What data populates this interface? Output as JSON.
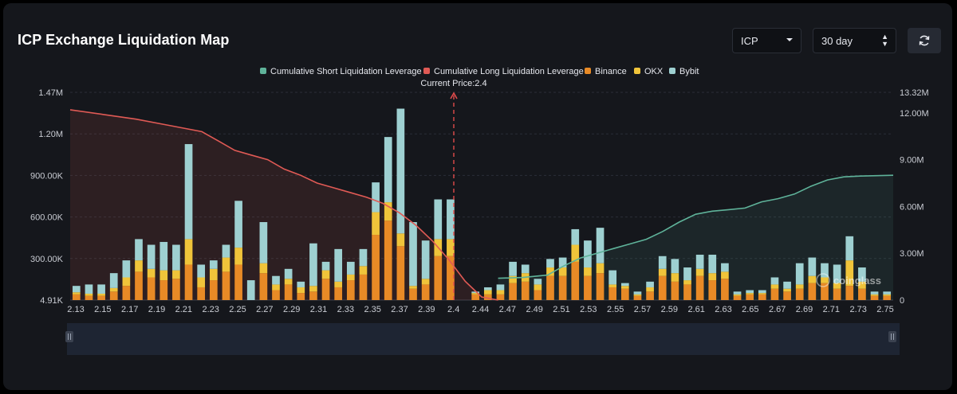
{
  "header": {
    "title": "ICP Exchange Liquidation Map",
    "coin_select": "ICP",
    "range_select": "30 day"
  },
  "colors": {
    "short_line": "#5fb39a",
    "long_line": "#e05a55",
    "binance": "#e88a26",
    "okx": "#f0c43a",
    "bybit": "#9ed0d1",
    "price_marker": "#e04b4b"
  },
  "watermark": "coinglass",
  "chart_data": {
    "type": "bar",
    "title": "ICP Exchange Liquidation Map",
    "current_price_label": "Current Price:2.4",
    "current_price": 2.4,
    "legend": [
      "Cumulative Short Liquidation Leverage",
      "Cumulative Long Liquidation Leverage",
      "Binance",
      "OKX",
      "Bybit"
    ],
    "legend_placement": "top-center",
    "left_axis_ticks": [
      "1.47M",
      "1.20M",
      "900.00K",
      "600.00K",
      "300.00K",
      "4.91K"
    ],
    "right_axis_ticks": [
      "13.32M",
      "12.00M",
      "9.00M",
      "6.00M",
      "3.00M",
      "0"
    ],
    "y_left_range": [
      4910,
      1470000
    ],
    "y_right_range": [
      0,
      13320000
    ],
    "x_tick_labels": [
      "2.13",
      "2.15",
      "2.17",
      "2.19",
      "2.21",
      "2.23",
      "2.25",
      "2.27",
      "2.29",
      "2.31",
      "2.33",
      "2.35",
      "2.37",
      "2.39",
      "2.4",
      "2.44",
      "2.47",
      "2.49",
      "2.51",
      "2.53",
      "2.55",
      "2.57",
      "2.59",
      "2.61",
      "2.63",
      "2.65",
      "2.67",
      "2.69",
      "2.71",
      "2.73",
      "2.75"
    ],
    "bars_binance": [
      40000,
      30000,
      30000,
      60000,
      100000,
      200000,
      160000,
      140000,
      150000,
      250000,
      90000,
      140000,
      200000,
      250000,
      0,
      190000,
      70000,
      110000,
      50000,
      60000,
      150000,
      90000,
      140000,
      180000,
      460000,
      560000,
      380000,
      80000,
      110000,
      310000,
      310000,
      0,
      40000,
      40000,
      40000,
      120000,
      130000,
      70000,
      170000,
      170000,
      270000,
      170000,
      190000,
      90000,
      80000,
      30000,
      60000,
      170000,
      130000,
      110000,
      170000,
      140000,
      150000,
      30000,
      40000,
      40000,
      80000,
      60000,
      80000,
      120000,
      120000,
      80000,
      100000,
      80000,
      30000,
      30000
    ],
    "bars_okx": [
      15000,
      15000,
      15000,
      25000,
      60000,
      80000,
      60000,
      70000,
      60000,
      180000,
      70000,
      80000,
      100000,
      120000,
      0,
      70000,
      40000,
      40000,
      40000,
      40000,
      60000,
      40000,
      40000,
      60000,
      160000,
      130000,
      90000,
      20000,
      40000,
      120000,
      120000,
      0,
      10000,
      30000,
      30000,
      50000,
      60000,
      40000,
      60000,
      60000,
      120000,
      60000,
      70000,
      20000,
      20000,
      10000,
      30000,
      50000,
      60000,
      30000,
      50000,
      50000,
      50000,
      10000,
      10000,
      10000,
      30000,
      20000,
      30000,
      50000,
      40000,
      40000,
      180000,
      50000,
      10000,
      10000
    ],
    "bars_bybit": [
      45000,
      65000,
      65000,
      105000,
      120000,
      150000,
      170000,
      200000,
      180000,
      670000,
      90000,
      60000,
      90000,
      330000,
      140000,
      290000,
      60000,
      70000,
      40000,
      300000,
      60000,
      230000,
      90000,
      120000,
      210000,
      460000,
      880000,
      450000,
      270000,
      280000,
      280000,
      0,
      10000,
      20000,
      40000,
      100000,
      60000,
      40000,
      60000,
      70000,
      110000,
      190000,
      250000,
      100000,
      20000,
      20000,
      40000,
      90000,
      100000,
      90000,
      100000,
      130000,
      60000,
      20000,
      20000,
      20000,
      50000,
      50000,
      150000,
      130000,
      100000,
      130000,
      170000,
      100000,
      20000,
      20000
    ],
    "cumulative_long_points": [
      [
        0,
        12.2
      ],
      [
        0.04,
        11.9
      ],
      [
        0.08,
        11.6
      ],
      [
        0.12,
        11.2
      ],
      [
        0.16,
        10.8
      ],
      [
        0.18,
        10.2
      ],
      [
        0.2,
        9.6
      ],
      [
        0.22,
        9.3
      ],
      [
        0.24,
        9.0
      ],
      [
        0.26,
        8.4
      ],
      [
        0.28,
        8.0
      ],
      [
        0.3,
        7.5
      ],
      [
        0.32,
        7.2
      ],
      [
        0.34,
        6.9
      ],
      [
        0.36,
        6.6
      ],
      [
        0.38,
        6.2
      ],
      [
        0.4,
        5.6
      ],
      [
        0.42,
        4.8
      ],
      [
        0.44,
        3.8
      ],
      [
        0.46,
        2.6
      ],
      [
        0.48,
        1.2
      ],
      [
        0.5,
        0.2
      ],
      [
        0.52,
        0.0
      ]
    ],
    "cumulative_short_points": [
      [
        0.52,
        1.4
      ],
      [
        0.55,
        1.45
      ],
      [
        0.58,
        1.6
      ],
      [
        0.6,
        2.2
      ],
      [
        0.62,
        2.7
      ],
      [
        0.64,
        3.0
      ],
      [
        0.66,
        3.3
      ],
      [
        0.68,
        3.6
      ],
      [
        0.7,
        3.9
      ],
      [
        0.72,
        4.4
      ],
      [
        0.74,
        5.0
      ],
      [
        0.76,
        5.5
      ],
      [
        0.78,
        5.7
      ],
      [
        0.8,
        5.8
      ],
      [
        0.82,
        5.9
      ],
      [
        0.84,
        6.3
      ],
      [
        0.86,
        6.5
      ],
      [
        0.88,
        6.8
      ],
      [
        0.9,
        7.3
      ],
      [
        0.92,
        7.7
      ],
      [
        0.94,
        7.9
      ],
      [
        0.96,
        7.95
      ],
      [
        1.0,
        8.0
      ]
    ],
    "grid": true
  }
}
